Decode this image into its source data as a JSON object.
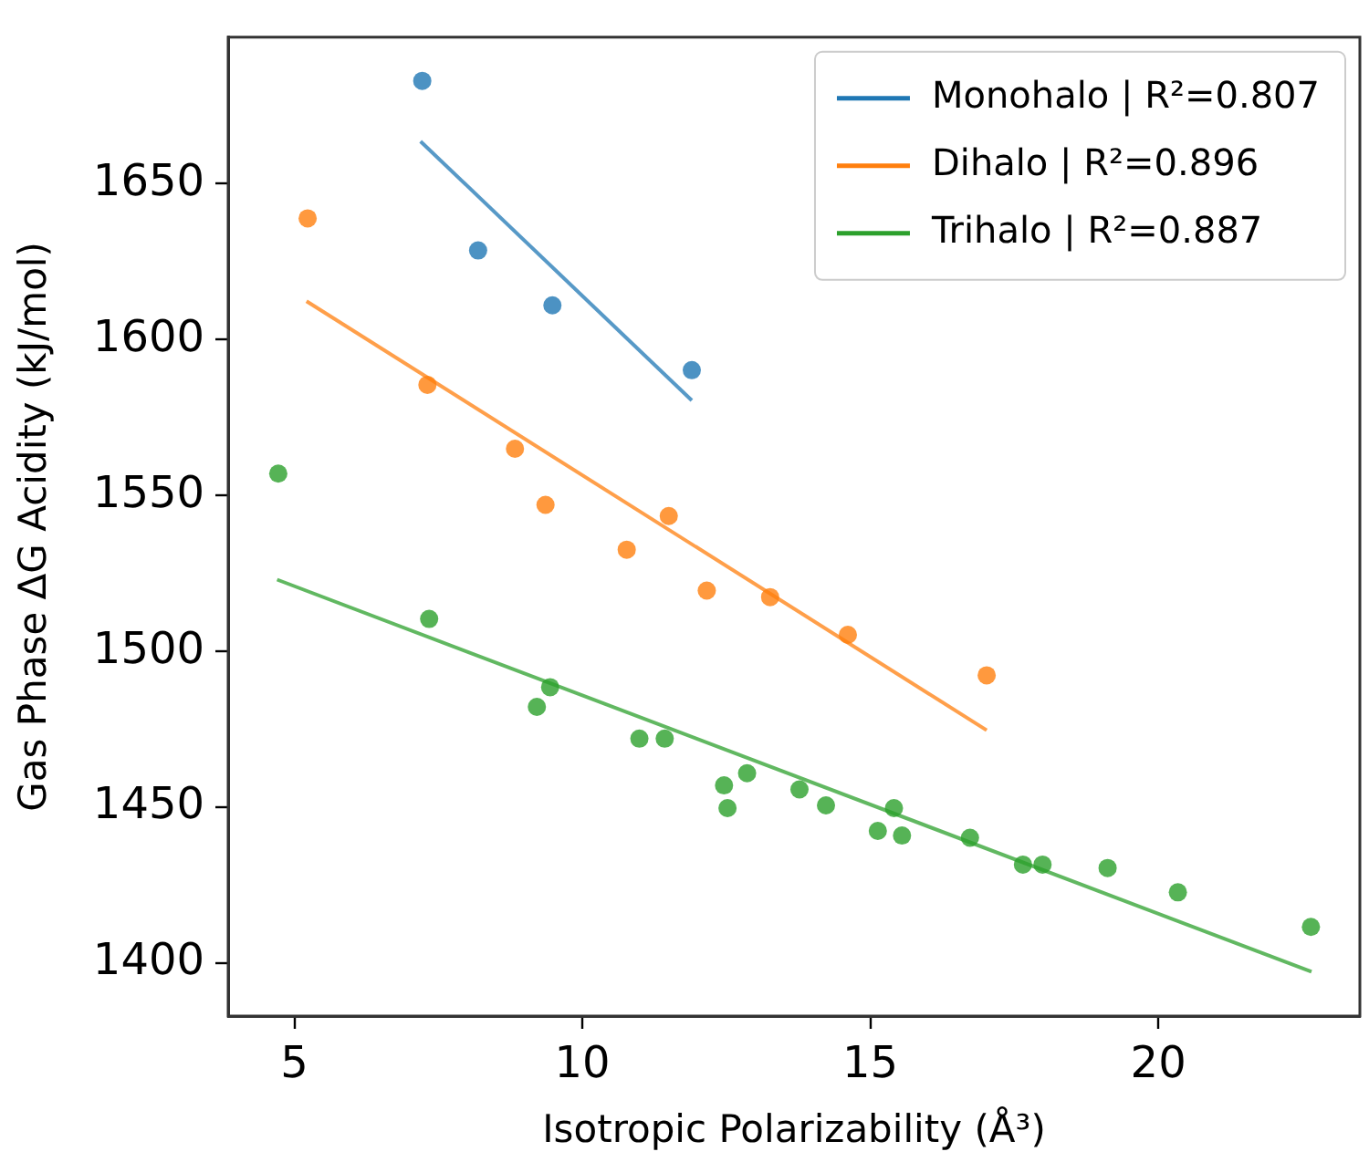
{
  "chart_data": {
    "type": "scatter",
    "xlabel": "Isotropic Polarizability (Å³)",
    "ylabel": "Gas Phase ΔG Acidity (kJ/mol)",
    "xlim": [
      3.85,
      23.5
    ],
    "xticks": [
      5,
      10,
      15,
      20
    ],
    "ylim": [
      1383,
      1697
    ],
    "yticks": [
      1400,
      1450,
      1500,
      1550,
      1600,
      1650
    ],
    "grid": false,
    "legend": "top right",
    "marker": "circle",
    "series": [
      {
        "color": "#1f77b4",
        "x": [
          7.22,
          8.19,
          9.48,
          11.9
        ],
        "values": [
          1683,
          1628.6,
          1611,
          1590.2
        ]
      },
      {
        "color": "#ff7f0e",
        "x": [
          5.23,
          7.31,
          8.83,
          9.36,
          10.77,
          11.5,
          12.16,
          13.26,
          14.61,
          17.02
        ],
        "values": [
          1638.9,
          1585.5,
          1565,
          1547,
          1532.6,
          1543.4,
          1519.5,
          1517.4,
          1505.3,
          1492.3
        ]
      },
      {
        "color": "#2ca02c",
        "x": [
          4.72,
          7.34,
          9.21,
          9.44,
          10.99,
          11.43,
          12.46,
          12.52,
          12.86,
          13.77,
          14.23,
          15.13,
          15.41,
          15.55,
          16.73,
          17.65,
          17.99,
          19.12,
          20.34,
          22.65
        ],
        "values": [
          1557,
          1510.4,
          1482.2,
          1488.5,
          1472,
          1472,
          1457,
          1449.7,
          1460.9,
          1455.7,
          1450.6,
          1442.4,
          1449.7,
          1440.9,
          1440.2,
          1431.6,
          1431.6,
          1430.5,
          1422.7,
          1411.6
        ]
      },
      {
        "type": "line",
        "name": "Monohalo | R²=0.807",
        "color": "#1f77b4",
        "marker": "none",
        "x": [
          7.19,
          11.9
        ],
        "values": [
          1663.6,
          1580.5
        ]
      },
      {
        "type": "line",
        "name": "Dihalo | R²=0.896",
        "color": "#ff7f0e",
        "marker": "none",
        "x": [
          5.21,
          17.02
        ],
        "values": [
          1612.3,
          1474.7
        ]
      },
      {
        "type": "line",
        "name": "Trihalo | R²=0.887",
        "color": "#2ca02c",
        "marker": "none",
        "x": [
          4.7,
          22.66
        ],
        "values": [
          1523,
          1397.2
        ]
      }
    ]
  }
}
